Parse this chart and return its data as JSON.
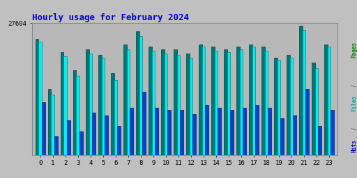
{
  "title": "Hourly usage for February 2024",
  "title_color": "#0000cc",
  "title_fontsize": 9,
  "ytick_label": "27604",
  "background_color": "#c0c0c0",
  "plot_bg_color": "#b8b8b8",
  "hours": [
    0,
    1,
    2,
    3,
    4,
    5,
    6,
    7,
    8,
    9,
    10,
    11,
    12,
    13,
    14,
    15,
    16,
    17,
    18,
    19,
    20,
    21,
    22,
    23
  ],
  "pages": [
    0.88,
    0.5,
    0.78,
    0.64,
    0.8,
    0.76,
    0.62,
    0.84,
    0.94,
    0.82,
    0.8,
    0.8,
    0.77,
    0.84,
    0.82,
    0.8,
    0.82,
    0.84,
    0.82,
    0.74,
    0.76,
    0.98,
    0.7,
    0.84
  ],
  "files": [
    0.86,
    0.46,
    0.75,
    0.6,
    0.77,
    0.74,
    0.57,
    0.8,
    0.9,
    0.79,
    0.77,
    0.76,
    0.74,
    0.82,
    0.79,
    0.78,
    0.8,
    0.82,
    0.79,
    0.72,
    0.74,
    0.95,
    0.66,
    0.82
  ],
  "hits": [
    0.4,
    0.14,
    0.26,
    0.18,
    0.32,
    0.3,
    0.22,
    0.36,
    0.48,
    0.36,
    0.34,
    0.34,
    0.31,
    0.38,
    0.36,
    0.34,
    0.36,
    0.38,
    0.36,
    0.28,
    0.3,
    0.5,
    0.22,
    0.34
  ],
  "pages_color": "#007777",
  "files_color": "#00eeee",
  "hits_color": "#0044cc",
  "pages_edge": "#004444",
  "files_edge": "#008888",
  "hits_edge": "#002288",
  "bar_width": 0.26,
  "ylim": [
    0,
    1.0
  ],
  "font_family": "monospace",
  "label_pages_color": "#008800",
  "label_files_color": "#00aaaa",
  "label_hits_color": "#0000cc"
}
